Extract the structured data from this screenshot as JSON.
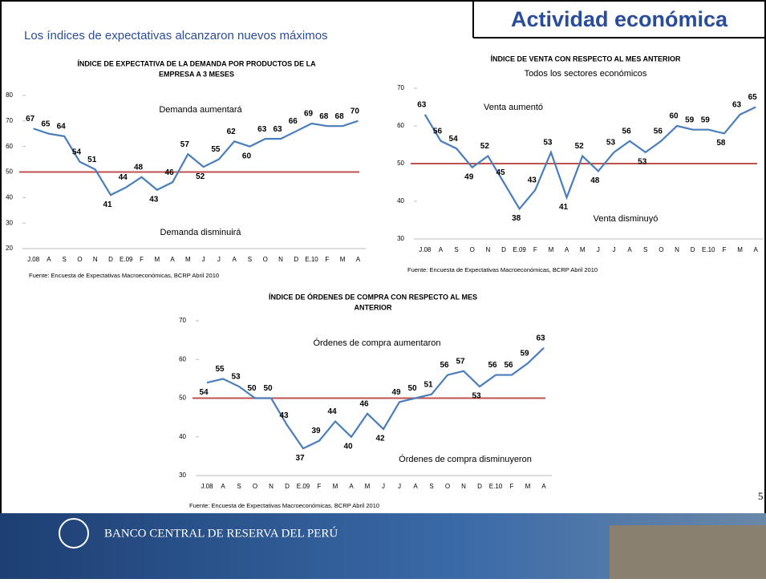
{
  "slide": {
    "heading": "Actividad económica",
    "subtitle": "Los índices de expectativas alcanzaron nuevos máximos",
    "page": "5",
    "footer": "BANCO CENTRAL DE RESERVA DEL PERÚ"
  },
  "chart_data": [
    {
      "type": "line",
      "title": [
        "ÍNDICE DE EXPECTATIVA  DE LA DEMANDA POR PRODUCTOS DE LA",
        "EMPRESA A 3 MESES"
      ],
      "categories": [
        "J.08",
        "A",
        "S",
        "O",
        "N",
        "D",
        "E.09",
        "F",
        "M",
        "A",
        "M",
        "J",
        "J",
        "A",
        "S",
        "O",
        "N",
        "D",
        "E.10",
        "F",
        "M",
        "A"
      ],
      "series": [
        {
          "name": "Índice",
          "color": "#4a7ebb",
          "values": [
            67,
            65,
            64,
            54,
            51,
            41,
            44,
            48,
            43,
            46,
            57,
            52,
            55,
            62,
            60,
            63,
            63,
            66,
            69,
            68,
            68,
            70
          ]
        }
      ],
      "reference_line": {
        "value": 50,
        "color": "#c0504d"
      },
      "annotations": [
        "Demanda aumentará",
        "Demanda disminuirá"
      ],
      "ylim": [
        20,
        80
      ],
      "yticks": [
        20,
        30,
        40,
        50,
        60,
        70,
        80
      ],
      "source": "Fuente: Encuesta de Expectativas Macroeconómicas, BCRP Abril 2010"
    },
    {
      "type": "line",
      "title": [
        "ÍNDICE DE VENTA CON RESPECTO AL MES ANTERIOR"
      ],
      "subtitle": "Todos los sectores económicos",
      "categories": [
        "J.08",
        "A",
        "S",
        "O",
        "N",
        "D",
        "E.09",
        "F",
        "M",
        "A",
        "M",
        "J",
        "J",
        "A",
        "S",
        "O",
        "N",
        "D",
        "E.10",
        "F",
        "M",
        "A"
      ],
      "series": [
        {
          "name": "Índice",
          "color": "#4a7ebb",
          "values": [
            63,
            56,
            54,
            49,
            52,
            45,
            38,
            43,
            53,
            41,
            52,
            48,
            53,
            56,
            53,
            56,
            60,
            59,
            59,
            58,
            63,
            65
          ]
        }
      ],
      "reference_line": {
        "value": 50,
        "color": "#c0504d"
      },
      "annotations": [
        "Venta aumentó",
        "Venta disminuyó"
      ],
      "ylim": [
        30,
        70
      ],
      "yticks": [
        30,
        40,
        50,
        60,
        70
      ],
      "source": "Fuente: Encuesta de Expectativas Macroeconómicas, BCRP Abril 2010"
    },
    {
      "type": "line",
      "title": [
        "ÍNDICE DE ÓRDENES DE COMPRA CON RESPECTO AL MES",
        "ANTERIOR"
      ],
      "categories": [
        "J.08",
        "A",
        "S",
        "O",
        "N",
        "D",
        "E.09",
        "F",
        "M",
        "A",
        "M",
        "J",
        "J",
        "A",
        "S",
        "O",
        "N",
        "D",
        "E.10",
        "F",
        "M",
        "A"
      ],
      "series": [
        {
          "name": "Índice",
          "color": "#4a7ebb",
          "values": [
            54,
            55,
            53,
            50,
            50,
            43,
            37,
            39,
            44,
            40,
            46,
            42,
            49,
            50,
            51,
            56,
            57,
            53,
            56,
            56,
            59,
            63
          ]
        }
      ],
      "reference_line": {
        "value": 50,
        "color": "#c0504d"
      },
      "annotations": [
        "Órdenes de compra aumentaron",
        "Órdenes de compra disminuyeron"
      ],
      "ylim": [
        30,
        70
      ],
      "yticks": [
        30,
        40,
        50,
        60,
        70
      ],
      "source": "Fuente: Encuesta de Expectativas Macroeconómicas, BCRP Abril 2010"
    }
  ]
}
